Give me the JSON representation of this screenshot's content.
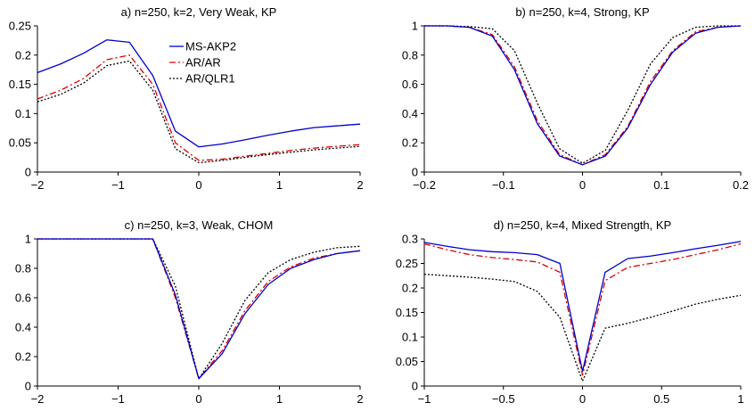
{
  "colors": {
    "ms_akp2": "#0000cc",
    "ar_ar": "#dd0000",
    "ar_qlr1": "#000000"
  },
  "legend": {
    "panel": 0,
    "entries": [
      "MS-AKP2",
      "AR/AR",
      "AR/QLR1"
    ]
  },
  "chart_data": [
    {
      "type": "line",
      "title": "a) n=250, k=2, Very Weak, KP",
      "xlim": [
        -2,
        2
      ],
      "ylim": [
        0,
        0.25
      ],
      "xticks": [
        -2,
        -1,
        0,
        1,
        2
      ],
      "xtick_labels": [
        "−2",
        "−1",
        "0",
        "1",
        "2"
      ],
      "yticks": [
        0,
        0.05,
        0.1,
        0.15,
        0.2,
        0.25
      ],
      "ytick_labels": [
        "0",
        "0.05",
        "0.1",
        "0.15",
        "0.2",
        "0.25"
      ],
      "series": [
        {
          "name": "MS-AKP2",
          "style": "solid",
          "color": "#0000cc",
          "x": [
            -2,
            -1.71,
            -1.43,
            -1.14,
            -0.86,
            -0.57,
            -0.29,
            0,
            0.29,
            0.57,
            0.86,
            1.14,
            1.43,
            1.71,
            2
          ],
          "y": [
            0.17,
            0.185,
            0.203,
            0.226,
            0.222,
            0.165,
            0.07,
            0.043,
            0.048,
            0.055,
            0.063,
            0.07,
            0.076,
            0.079,
            0.082
          ]
        },
        {
          "name": "AR/AR",
          "style": "dashed",
          "color": "#dd0000",
          "x": [
            -2,
            -1.71,
            -1.43,
            -1.14,
            -0.86,
            -0.57,
            -0.29,
            0,
            0.29,
            0.57,
            0.86,
            1.14,
            1.43,
            1.71,
            2
          ],
          "y": [
            0.125,
            0.14,
            0.16,
            0.192,
            0.2,
            0.15,
            0.05,
            0.02,
            0.022,
            0.027,
            0.032,
            0.037,
            0.041,
            0.044,
            0.047
          ]
        },
        {
          "name": "AR/QLR1",
          "style": "dotted",
          "color": "#000000",
          "x": [
            -2,
            -1.71,
            -1.43,
            -1.14,
            -0.86,
            -0.57,
            -0.29,
            0,
            0.29,
            0.57,
            0.86,
            1.14,
            1.43,
            1.71,
            2
          ],
          "y": [
            0.12,
            0.133,
            0.152,
            0.182,
            0.19,
            0.14,
            0.04,
            0.016,
            0.02,
            0.025,
            0.03,
            0.034,
            0.038,
            0.041,
            0.044
          ]
        }
      ]
    },
    {
      "type": "line",
      "title": "b) n=250, k=4, Strong, KP",
      "xlim": [
        -0.2,
        0.2
      ],
      "ylim": [
        0,
        1
      ],
      "xticks": [
        -0.2,
        -0.1,
        0,
        0.1,
        0.2
      ],
      "xtick_labels": [
        "−0.2",
        "−0.1",
        "0",
        "0.1",
        "0.2"
      ],
      "yticks": [
        0,
        0.2,
        0.4,
        0.6,
        0.8,
        1
      ],
      "ytick_labels": [
        "0",
        "0.2",
        "0.4",
        "0.6",
        "0.8",
        "1"
      ],
      "series": [
        {
          "name": "MS-AKP2",
          "style": "solid",
          "color": "#0000cc",
          "x": [
            -0.2,
            -0.171,
            -0.143,
            -0.114,
            -0.086,
            -0.057,
            -0.029,
            0,
            0.029,
            0.057,
            0.086,
            0.114,
            0.143,
            0.171,
            0.2
          ],
          "y": [
            1,
            1,
            0.99,
            0.93,
            0.7,
            0.33,
            0.11,
            0.05,
            0.11,
            0.3,
            0.6,
            0.82,
            0.95,
            0.99,
            1
          ]
        },
        {
          "name": "AR/AR",
          "style": "dashed",
          "color": "#dd0000",
          "x": [
            -0.2,
            -0.171,
            -0.143,
            -0.114,
            -0.086,
            -0.057,
            -0.029,
            0,
            0.029,
            0.057,
            0.086,
            0.114,
            0.143,
            0.171,
            0.2
          ],
          "y": [
            1,
            1,
            0.99,
            0.94,
            0.72,
            0.35,
            0.12,
            0.05,
            0.12,
            0.31,
            0.62,
            0.83,
            0.96,
            0.99,
            1
          ]
        },
        {
          "name": "AR/QLR1",
          "style": "dotted",
          "color": "#000000",
          "x": [
            -0.2,
            -0.171,
            -0.143,
            -0.114,
            -0.086,
            -0.057,
            -0.029,
            0,
            0.029,
            0.057,
            0.086,
            0.114,
            0.143,
            0.171,
            0.2
          ],
          "y": [
            1,
            1,
            0.995,
            0.98,
            0.83,
            0.47,
            0.16,
            0.06,
            0.15,
            0.42,
            0.74,
            0.92,
            0.99,
            1,
            1
          ]
        }
      ]
    },
    {
      "type": "line",
      "title": "c) n=250, k=3, Weak, CHOM",
      "xlim": [
        -2,
        2
      ],
      "ylim": [
        0,
        1
      ],
      "xticks": [
        -2,
        -1,
        0,
        1,
        2
      ],
      "xtick_labels": [
        "−2",
        "−1",
        "0",
        "1",
        "2"
      ],
      "yticks": [
        0,
        0.2,
        0.4,
        0.6,
        0.8,
        1
      ],
      "ytick_labels": [
        "0",
        "0.2",
        "0.4",
        "0.6",
        "0.8",
        "1"
      ],
      "series": [
        {
          "name": "MS-AKP2",
          "style": "solid",
          "color": "#0000cc",
          "x": [
            -2,
            -1.71,
            -1.43,
            -1.14,
            -0.86,
            -0.57,
            -0.29,
            0,
            0.29,
            0.57,
            0.86,
            1.14,
            1.43,
            1.71,
            2
          ],
          "y": [
            1,
            1,
            1,
            1,
            1,
            1,
            0.62,
            0.05,
            0.22,
            0.49,
            0.69,
            0.8,
            0.86,
            0.9,
            0.92
          ]
        },
        {
          "name": "AR/AR",
          "style": "dashed",
          "color": "#dd0000",
          "x": [
            -2,
            -1.71,
            -1.43,
            -1.14,
            -0.86,
            -0.57,
            -0.29,
            0,
            0.29,
            0.57,
            0.86,
            1.14,
            1.43,
            1.71,
            2
          ],
          "y": [
            1,
            1,
            1,
            1,
            1,
            1,
            0.6,
            0.05,
            0.24,
            0.51,
            0.71,
            0.81,
            0.87,
            0.9,
            0.92
          ]
        },
        {
          "name": "AR/QLR1",
          "style": "dotted",
          "color": "#000000",
          "x": [
            -2,
            -1.71,
            -1.43,
            -1.14,
            -0.86,
            -0.57,
            -0.29,
            0,
            0.29,
            0.57,
            0.86,
            1.14,
            1.43,
            1.71,
            2
          ],
          "y": [
            1,
            1,
            1,
            1,
            1,
            1,
            0.68,
            0.05,
            0.29,
            0.58,
            0.77,
            0.86,
            0.91,
            0.94,
            0.95
          ]
        }
      ]
    },
    {
      "type": "line",
      "title": "d) n=250, k=4, Mixed Strength, KP",
      "xlim": [
        -1,
        1
      ],
      "ylim": [
        0,
        0.3
      ],
      "xticks": [
        -1,
        -0.5,
        0,
        0.5,
        1
      ],
      "xtick_labels": [
        "−1",
        "−0.5",
        "0",
        "0.5",
        "1"
      ],
      "yticks": [
        0,
        0.05,
        0.1,
        0.15,
        0.2,
        0.25,
        0.3
      ],
      "ytick_labels": [
        "0",
        "0.05",
        "0.1",
        "0.15",
        "0.2",
        "0.25",
        "0.3"
      ],
      "series": [
        {
          "name": "MS-AKP2",
          "style": "solid",
          "color": "#0000cc",
          "x": [
            -1,
            -0.857,
            -0.714,
            -0.571,
            -0.429,
            -0.286,
            -0.143,
            0,
            0.143,
            0.286,
            0.429,
            0.571,
            0.714,
            0.857,
            1
          ],
          "y": [
            0.293,
            0.285,
            0.278,
            0.274,
            0.272,
            0.268,
            0.25,
            0.03,
            0.232,
            0.26,
            0.265,
            0.272,
            0.28,
            0.287,
            0.295
          ]
        },
        {
          "name": "AR/AR",
          "style": "dashed",
          "color": "#dd0000",
          "x": [
            -1,
            -0.857,
            -0.714,
            -0.571,
            -0.429,
            -0.286,
            -0.143,
            0,
            0.143,
            0.286,
            0.429,
            0.571,
            0.714,
            0.857,
            1
          ],
          "y": [
            0.29,
            0.278,
            0.268,
            0.262,
            0.258,
            0.253,
            0.232,
            0.022,
            0.215,
            0.242,
            0.25,
            0.258,
            0.268,
            0.278,
            0.29
          ]
        },
        {
          "name": "AR/QLR1",
          "style": "dotted",
          "color": "#000000",
          "x": [
            -1,
            -0.857,
            -0.714,
            -0.571,
            -0.429,
            -0.286,
            -0.143,
            0,
            0.143,
            0.286,
            0.429,
            0.571,
            0.714,
            0.857,
            1
          ],
          "y": [
            0.228,
            0.225,
            0.222,
            0.218,
            0.213,
            0.193,
            0.14,
            0.01,
            0.118,
            0.128,
            0.14,
            0.153,
            0.167,
            0.177,
            0.185
          ]
        }
      ]
    }
  ]
}
